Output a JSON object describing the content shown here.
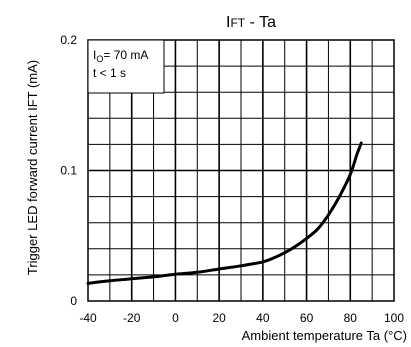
{
  "chart_data": {
    "type": "line",
    "title": "IFT - Ta",
    "title_parts": {
      "main": "I",
      "sub": "FT",
      "rest": " - Ta"
    },
    "xlabel": "Ambient temperature Ta (°C)",
    "ylabel": "Trigger LED forward current IFT (mA)",
    "xlim": [
      -40,
      100
    ],
    "ylim": [
      0,
      0.2
    ],
    "x_ticks": [
      -40,
      -20,
      0,
      20,
      40,
      60,
      80,
      100
    ],
    "x_tick_labels": [
      "-40",
      "-20",
      "0",
      "20",
      "40",
      "60",
      "80",
      "100"
    ],
    "y_ticks": [
      0,
      0.1,
      0.2
    ],
    "y_tick_labels": [
      "0",
      "0.1",
      "0.2"
    ],
    "grid": true,
    "grid_minor_x": 10,
    "grid_minor_y": 0.02,
    "annotation_lines": [
      "IO= 70 mA",
      "t < 1 s"
    ],
    "annotation_parts": [
      {
        "main": "I",
        "sub": "O",
        "rest": "= 70 mA"
      },
      {
        "main": "t < 1 s",
        "sub": "",
        "rest": ""
      }
    ],
    "annotation_position": "top-left",
    "series": [
      {
        "x": [
          -40,
          -30,
          -20,
          -10,
          0,
          10,
          20,
          30,
          40,
          45,
          50,
          55,
          60,
          65,
          70,
          75,
          80,
          83,
          85
        ],
        "y": [
          0.0135,
          0.0155,
          0.017,
          0.0185,
          0.0205,
          0.022,
          0.0245,
          0.027,
          0.03,
          0.033,
          0.037,
          0.042,
          0.048,
          0.055,
          0.066,
          0.08,
          0.097,
          0.112,
          0.121
        ]
      }
    ]
  }
}
